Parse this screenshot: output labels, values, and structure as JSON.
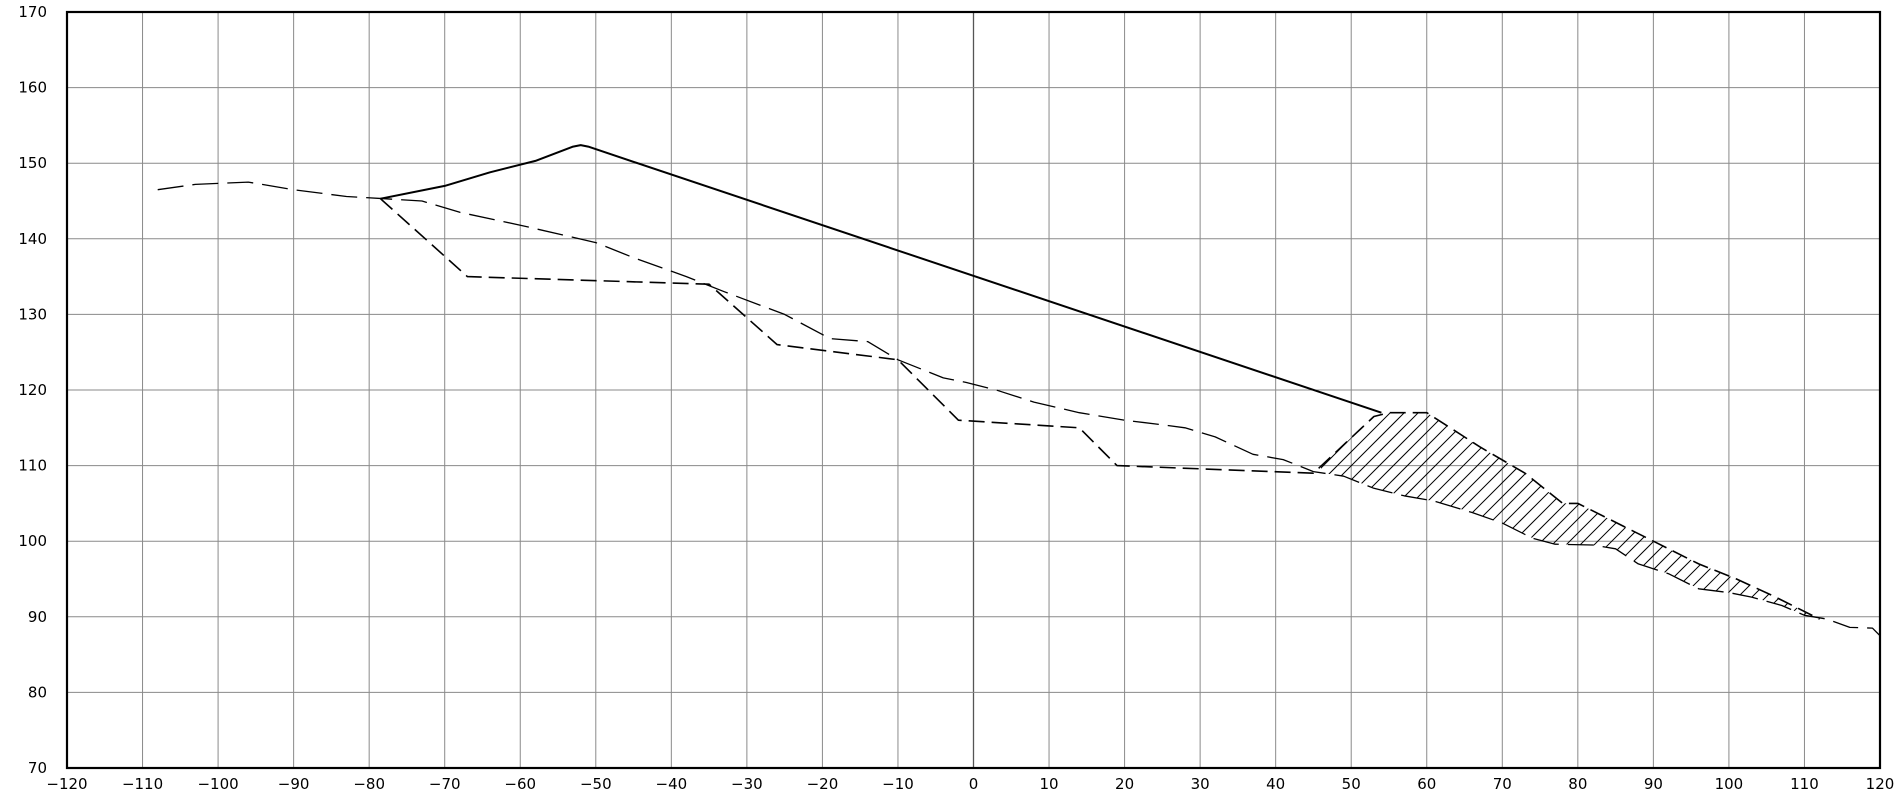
{
  "chart_data": {
    "type": "line",
    "title": "",
    "xlabel": "",
    "ylabel": "",
    "xlim": [
      -120,
      120
    ],
    "ylim": [
      70,
      170
    ],
    "x_ticks": [
      -120,
      -110,
      -100,
      -90,
      -80,
      -70,
      -60,
      -50,
      -40,
      -30,
      -20,
      -10,
      0,
      10,
      20,
      30,
      40,
      50,
      60,
      70,
      80,
      90,
      100,
      110,
      120
    ],
    "y_ticks": [
      70,
      80,
      90,
      100,
      110,
      120,
      130,
      140,
      150,
      160,
      170
    ],
    "grid": true,
    "legend": "none",
    "series": [
      {
        "id": "existing-ground",
        "style": "long-dash",
        "points": [
          [
            -108,
            146.5
          ],
          [
            -103,
            147.2
          ],
          [
            -96,
            147.5
          ],
          [
            -90,
            146.5
          ],
          [
            -83,
            145.6
          ],
          [
            -78,
            145.3
          ],
          [
            -73,
            145
          ],
          [
            -68,
            143.5
          ],
          [
            -60,
            141.8
          ],
          [
            -50,
            139.5
          ],
          [
            -45,
            137.5
          ],
          [
            -38,
            135
          ],
          [
            -33,
            133
          ],
          [
            -25,
            130
          ],
          [
            -19,
            126.8
          ],
          [
            -14,
            126.4
          ],
          [
            -10,
            124
          ],
          [
            -4,
            121.6
          ],
          [
            -1,
            121
          ],
          [
            3,
            120
          ],
          [
            8,
            118.4
          ],
          [
            14,
            117
          ],
          [
            20,
            116
          ],
          [
            25,
            115.4
          ],
          [
            28,
            115
          ],
          [
            32,
            113.8
          ],
          [
            37,
            111.5
          ],
          [
            41,
            110.8
          ],
          [
            45,
            109.2
          ],
          [
            49,
            108.6
          ],
          [
            53,
            107
          ],
          [
            57,
            106
          ],
          [
            61,
            105.3
          ],
          [
            66,
            103.8
          ],
          [
            70,
            102.4
          ],
          [
            74,
            100.4
          ],
          [
            77,
            99.6
          ],
          [
            82,
            99.5
          ],
          [
            85,
            99
          ],
          [
            88,
            97
          ],
          [
            92,
            95.7
          ],
          [
            96,
            93.7
          ],
          [
            100,
            93.2
          ],
          [
            103,
            92.6
          ],
          [
            107,
            91.5
          ],
          [
            110,
            90.2
          ],
          [
            113,
            89.7
          ],
          [
            116,
            88.6
          ],
          [
            119,
            88.5
          ],
          [
            120,
            87.5
          ]
        ]
      },
      {
        "id": "design-profile",
        "style": "dash",
        "points": [
          [
            -78.5,
            145.3
          ],
          [
            -67,
            135
          ],
          [
            -35,
            134
          ],
          [
            -26,
            126
          ],
          [
            -10,
            124
          ],
          [
            -2,
            116
          ],
          [
            14,
            115
          ],
          [
            19,
            110
          ],
          [
            45,
            109
          ],
          [
            53,
            116.5
          ],
          [
            55,
            117
          ],
          [
            60,
            117
          ],
          [
            67,
            112.5
          ],
          [
            73,
            109
          ],
          [
            78,
            105
          ],
          [
            80,
            105
          ],
          [
            86,
            102
          ],
          [
            90,
            100
          ],
          [
            96,
            97
          ],
          [
            101,
            95
          ],
          [
            106,
            92.7
          ],
          [
            112,
            89.7
          ]
        ]
      },
      {
        "id": "projection-line",
        "style": "solid",
        "points": [
          [
            -78.5,
            145.3
          ],
          [
            -70,
            147
          ],
          [
            -64,
            148.8
          ],
          [
            -58,
            150.3
          ],
          [
            -53,
            152.2
          ],
          [
            -52,
            152.4
          ],
          [
            -51,
            152.2
          ],
          [
            54,
            117
          ]
        ]
      }
    ],
    "hatched_area": {
      "x_range": [
        46,
        112
      ],
      "bounded_by": [
        "design-profile",
        "existing-ground"
      ]
    }
  }
}
